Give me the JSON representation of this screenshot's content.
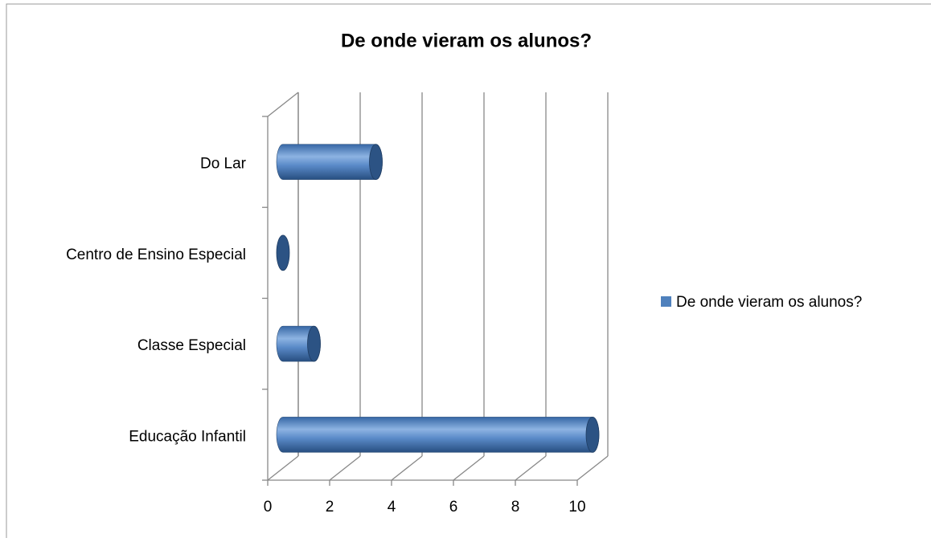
{
  "chart_data": {
    "type": "bar3d",
    "orientation": "horizontal",
    "title": "De onde vieram os alunos?",
    "categories": [
      "Do Lar",
      "Centro de Ensino Especial",
      "Classe Especial",
      "Educação Infantil"
    ],
    "series": [
      {
        "name": "De onde vieram os alunos?",
        "color": "#4f81bd",
        "values": [
          3,
          0,
          1,
          10
        ]
      }
    ],
    "xlim": [
      0,
      10
    ],
    "xticks": [
      0,
      2,
      4,
      6,
      8,
      10
    ],
    "grid": true,
    "legend": "right"
  }
}
